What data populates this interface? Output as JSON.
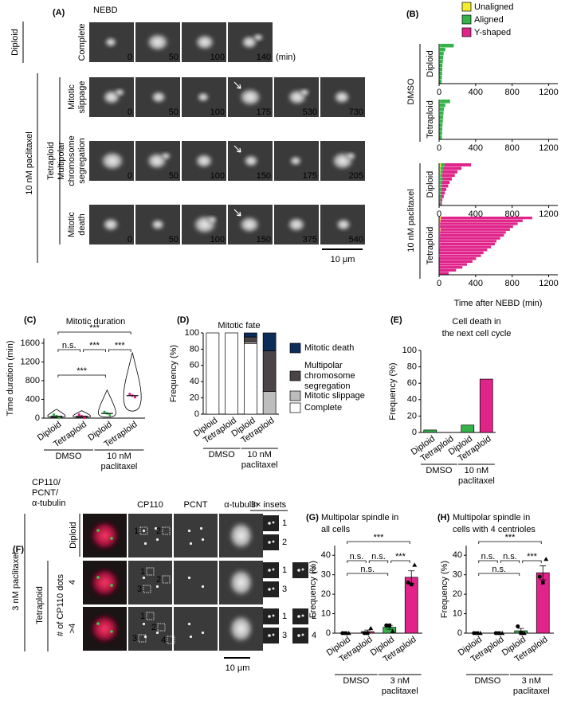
{
  "panel_A": {
    "label": "(A)",
    "nebd": "NEBD",
    "unit": "(min)",
    "scale_bar": "10 μm",
    "treatment": "10 nM paclitaxel",
    "groups": [
      "Diploid",
      "Tetraploid"
    ],
    "rows": [
      {
        "lines": [
          "Complete"
        ],
        "times": [
          0,
          50,
          100,
          140
        ]
      },
      {
        "lines": [
          "Mitotic",
          "slippage"
        ],
        "times": [
          0,
          50,
          100,
          175,
          530,
          730
        ]
      },
      {
        "lines": [
          "Multipolar",
          "chromosome",
          "segregation"
        ],
        "times": [
          0,
          50,
          100,
          150,
          175,
          205
        ]
      },
      {
        "lines": [
          "Mitotic",
          "death"
        ],
        "times": [
          0,
          50,
          100,
          150,
          375,
          540
        ]
      }
    ]
  },
  "panel_B": {
    "label": "(B)",
    "legend": [
      {
        "name": "Unaligned",
        "color": "#f4ec2c"
      },
      {
        "name": "Aligned",
        "color": "#35b34a"
      },
      {
        "name": "Y-shaped",
        "color": "#e0248a"
      }
    ],
    "x_label": "Time after NEBD (min)",
    "xlim": [
      0,
      1300
    ],
    "xticks": [
      0,
      400,
      800,
      1200
    ],
    "treatments": [
      "DMSO",
      "10 nM paclitaxel"
    ],
    "plots": [
      {
        "name": "Diploid",
        "unaligned": [
          10,
          8,
          8,
          6,
          6,
          5,
          5,
          5,
          5,
          5
        ],
        "aligned": [
          150,
          60,
          42,
          38,
          35,
          32,
          30,
          28,
          25,
          22
        ],
        "y_shaped": [
          0,
          0,
          0,
          0,
          0,
          0,
          0,
          0,
          0,
          0
        ]
      },
      {
        "name": "Tetraploid",
        "unaligned": [
          10,
          8,
          8,
          8,
          6,
          6,
          5,
          5,
          5,
          5
        ],
        "aligned": [
          110,
          60,
          45,
          40,
          38,
          35,
          32,
          30,
          28,
          25
        ],
        "y_shaped": [
          0,
          0,
          0,
          0,
          0,
          0,
          0,
          0,
          0,
          0
        ]
      },
      {
        "name": "Diploid",
        "unaligned": [
          20,
          15,
          15,
          12,
          10,
          10,
          10,
          8,
          8,
          6,
          6,
          5
        ],
        "aligned": [
          40,
          30,
          25,
          20,
          30,
          25,
          20,
          20,
          15,
          15,
          10,
          10
        ],
        "y_shaped": [
          290,
          200,
          160,
          140,
          100,
          80,
          70,
          50,
          40,
          30,
          20,
          15
        ]
      },
      {
        "name": "Tetraploid",
        "unaligned": [
          20,
          15,
          10,
          10,
          15,
          10,
          10,
          8,
          8,
          10,
          8,
          6,
          6,
          8,
          5,
          5,
          5,
          5,
          5,
          5
        ],
        "aligned": [
          0,
          0,
          0,
          0,
          0,
          0,
          0,
          0,
          0,
          0,
          0,
          0,
          0,
          0,
          0,
          0,
          0,
          0,
          0,
          0
        ],
        "y_shaped": [
          1000,
          900,
          850,
          800,
          760,
          720,
          700,
          660,
          620,
          600,
          560,
          520,
          480,
          450,
          400,
          360,
          300,
          250,
          180,
          100
        ]
      }
    ]
  },
  "panel_C": {
    "label": "(C)",
    "title_lines": [
      "Mitotic duration"
    ],
    "y_label": "Time duration (min)",
    "ylim": [
      0,
      1700
    ],
    "yticks": [
      0,
      400,
      800,
      1200,
      1600
    ],
    "categories": [
      "Diploid",
      "Tetraploid",
      "Diploid",
      "Tetraploid"
    ],
    "groups": [
      [
        "DMSO"
      ],
      [
        "10 nM",
        "paclitaxel"
      ]
    ],
    "colors": [
      "#35b34a",
      "#e0248a",
      "#35b34a",
      "#e0248a"
    ],
    "mins": [
      15,
      15,
      20,
      150
    ],
    "medians": [
      40,
      40,
      100,
      480
    ],
    "maxs": [
      190,
      160,
      600,
      1400
    ],
    "significance": [
      {
        "from": 0,
        "to": 3,
        "label": "***"
      },
      {
        "from": 0,
        "to": 1,
        "label": "n.s."
      },
      {
        "from": 1,
        "to": 2,
        "label": "***"
      },
      {
        "from": 2,
        "to": 3,
        "label": "***"
      },
      {
        "from": 0,
        "to": 2,
        "label": "***"
      }
    ]
  },
  "panel_D": {
    "label": "(D)",
    "title_lines": [
      "Mitotic fate"
    ],
    "y_label": "Frequency (%)",
    "ylim": [
      0,
      100
    ],
    "yticks": [
      0,
      20,
      40,
      60,
      80,
      100
    ],
    "categories": [
      "Diploid",
      "Tetraploid",
      "Diploid",
      "Tetraploid"
    ],
    "groups": [
      [
        "DMSO"
      ],
      [
        "10 nM",
        "paclitaxel"
      ]
    ],
    "series": [
      {
        "name_lines": [
          "Complete"
        ],
        "color": "#ffffff",
        "values": [
          100,
          100,
          87,
          0
        ]
      },
      {
        "name_lines": [
          "Mitotic slippage"
        ],
        "color": "#bdbdbd",
        "values": [
          0,
          0,
          2,
          28
        ]
      },
      {
        "name_lines": [
          "Multipolar",
          "chromosome",
          "segregation"
        ],
        "color": "#4a4448",
        "values": [
          0,
          0,
          6,
          50
        ]
      },
      {
        "name_lines": [
          "Mitotic death"
        ],
        "color": "#0c2d5a",
        "values": [
          0,
          0,
          5,
          22
        ]
      }
    ]
  },
  "panel_E": {
    "label": "(E)",
    "title_lines": [
      "Cell death in",
      "the next cell cycle"
    ],
    "y_label": "Frequency (%)",
    "ylim": [
      0,
      100
    ],
    "yticks": [
      0,
      20,
      40,
      60,
      80,
      100
    ],
    "categories": [
      "Diploid",
      "Tetraploid",
      "Diploid",
      "Tetraploid"
    ],
    "groups": [
      [
        "DMSO"
      ],
      [
        "10 nM",
        "paclitaxel"
      ]
    ],
    "colors": [
      "#35b34a",
      "#e0248a",
      "#35b34a",
      "#e0248a"
    ],
    "values": [
      3,
      0,
      9,
      65
    ]
  },
  "panel_F": {
    "label": "(F)",
    "stain_lines": [
      {
        "text": "CP110/",
        "color": "#1fa83a"
      },
      {
        "text": "PCNT/",
        "color": "#2a2ad6"
      },
      {
        "text": "α-tubulin",
        "color": "#e0201c"
      }
    ],
    "columns": [
      "CP110",
      "PCNT",
      "α-tubulin",
      "3× insets"
    ],
    "treatment": "3 nM paclitaxel",
    "groups": [
      "Diploid",
      "Tetraploid"
    ],
    "dots_label": "# of CP110 dots",
    "dots": [
      4,
      ">4"
    ],
    "scale_bar": "10 μm",
    "spot_labels": [
      [
        1,
        2
      ],
      [
        1,
        2,
        3
      ],
      [
        1,
        2,
        3,
        4
      ]
    ],
    "inset_labels": [
      [
        1,
        2
      ],
      [
        1,
        3,
        2
      ],
      [
        1,
        3,
        2,
        4
      ]
    ]
  },
  "panel_G": {
    "label": "(G)",
    "title_lines": [
      "Multipolar spindle in",
      "all cells"
    ],
    "y_label": "Frequency (%)",
    "ylim": [
      0,
      45
    ],
    "yticks": [
      0,
      10,
      20,
      30,
      40
    ],
    "categories": [
      "Diploid",
      "Tetraploid",
      "Diploid",
      "Tetraploid"
    ],
    "groups": [
      [
        "DMSO"
      ],
      [
        "3 nM",
        "paclitaxel"
      ]
    ],
    "colors": [
      "#35b34a",
      "#e0248a",
      "#35b34a",
      "#e0248a"
    ],
    "values": [
      0,
      0.8,
      3,
      28.7
    ],
    "errors": [
      0,
      0.8,
      1,
      3.3
    ],
    "point_shapes": [
      "circle",
      "square",
      "triangle"
    ],
    "points": [
      [
        0,
        0,
        0
      ],
      [
        0,
        0,
        2.5
      ],
      [
        4,
        4,
        1
      ],
      [
        26,
        25,
        35
      ]
    ],
    "significance": [
      {
        "from": 0,
        "to": 3,
        "label": "***"
      },
      {
        "from": 0,
        "to": 1,
        "label": "n.s."
      },
      {
        "from": 1,
        "to": 2,
        "label": "n.s."
      },
      {
        "from": 2,
        "to": 3,
        "label": "***"
      },
      {
        "from": 0,
        "to": 2,
        "label": "n.s."
      }
    ]
  },
  "panel_H": {
    "label": "(H)",
    "title_lines": [
      "Multipolar spindle in",
      "cells with 4 centrioles"
    ],
    "y_label": "Frequency (%)",
    "ylim": [
      0,
      45
    ],
    "yticks": [
      0,
      10,
      20,
      30,
      40
    ],
    "categories": [
      "Diploid",
      "Tetraploid",
      "Diploid",
      "Tetraploid"
    ],
    "groups": [
      [
        "DMSO"
      ],
      [
        "3 nM",
        "paclitaxel"
      ]
    ],
    "colors": [
      "#35b34a",
      "#e0248a",
      "#35b34a",
      "#e0248a"
    ],
    "values": [
      0,
      0,
      1.2,
      31
    ],
    "errors": [
      0,
      0,
      1.2,
      3.6
    ],
    "point_shapes": [
      "circle",
      "square",
      "triangle"
    ],
    "points": [
      [
        0,
        0,
        0
      ],
      [
        0,
        0,
        0
      ],
      [
        3.5,
        0,
        0
      ],
      [
        29,
        26,
        38
      ]
    ],
    "significance": [
      {
        "from": 0,
        "to": 3,
        "label": "***"
      },
      {
        "from": 0,
        "to": 1,
        "label": "n.s."
      },
      {
        "from": 1,
        "to": 2,
        "label": "n.s."
      },
      {
        "from": 2,
        "to": 3,
        "label": "***"
      },
      {
        "from": 0,
        "to": 2,
        "label": "n.s."
      }
    ]
  }
}
